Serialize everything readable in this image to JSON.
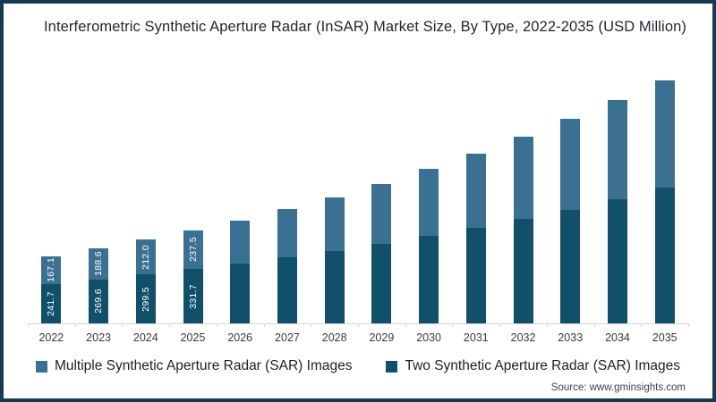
{
  "title": "Interferometric Synthetic Aperture Radar (InSAR) Market Size, By Type, 2022-2035 (USD Million)",
  "source_text": "Source: www.gminsights.com",
  "colors": {
    "frame_border": "#153a52",
    "axis_line": "#d2d5d8",
    "title_text": "#25252f",
    "bar_two_sar": "#11506a",
    "bar_multiple_sar": "#3a7192",
    "value_label_text": "#ffffff"
  },
  "legend": [
    {
      "label": "Multiple Synthetic Aperture Radar (SAR) Images",
      "color": "#3a7192"
    },
    {
      "label": "Two Synthetic Aperture Radar (SAR) Images",
      "color": "#11506a"
    }
  ],
  "chart_data": {
    "type": "bar",
    "stacked": true,
    "title": "Interferometric Synthetic Aperture Radar (InSAR) Market Size, By Type, 2022-2035 (USD Million)",
    "xlabel": "",
    "ylabel": "USD Million",
    "grid": false,
    "legend_position": "bottom",
    "categories": [
      "2022",
      "2023",
      "2024",
      "2025",
      "2026",
      "2027",
      "2028",
      "2029",
      "2030",
      "2031",
      "2032",
      "2033",
      "2034",
      "2035"
    ],
    "series": [
      {
        "name": "Two Synthetic Aperture Radar (SAR) Images",
        "stack_position": "bottom",
        "color": "#11506a",
        "values": [
          241.7,
          269.6,
          299.5,
          331.7,
          366,
          403,
          442,
          486,
          536,
          585,
          637,
          694,
          757,
          831
        ]
      },
      {
        "name": "Multiple Synthetic Aperture Radar (SAR) Images",
        "stack_position": "top",
        "color": "#3a7192",
        "values": [
          167.1,
          188.6,
          212.0,
          237.5,
          263,
          292,
          328,
          366,
          405,
          450,
          501,
          553,
          607,
          652
        ]
      }
    ],
    "data_labels_visible_for_years": [
      "2022",
      "2023",
      "2024",
      "2025"
    ],
    "visible_data_labels": {
      "2022": {
        "two_sar": "241.7",
        "multiple_sar": "167.1"
      },
      "2023": {
        "two_sar": "269.6",
        "multiple_sar": "188.6"
      },
      "2024": {
        "two_sar": "299.5",
        "multiple_sar": "212.0"
      },
      "2025": {
        "two_sar": "331.7",
        "multiple_sar": "237.5"
      }
    }
  }
}
